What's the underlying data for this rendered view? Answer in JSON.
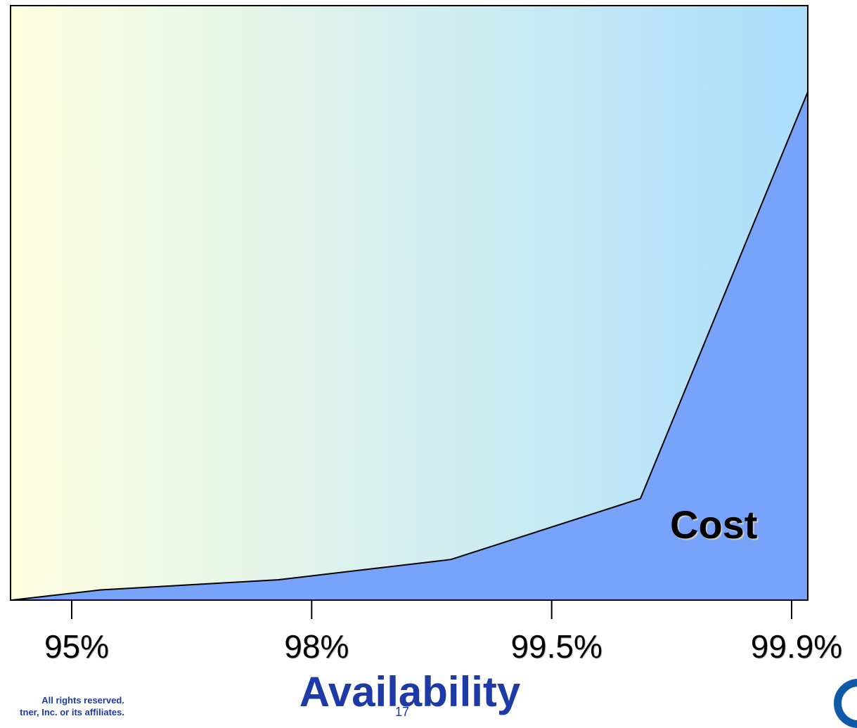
{
  "chart_data": {
    "type": "area",
    "categories": [
      "95%",
      "98%",
      "99.5%",
      "99.9%"
    ],
    "series": [
      {
        "name": "Cost",
        "values": [
          2,
          4,
          22,
          100
        ]
      }
    ],
    "profile": {
      "x": [
        -0.25,
        0.12,
        0.86,
        1.58,
        2.37,
        3.07
      ],
      "y": [
        0,
        2,
        4,
        8,
        20,
        100
      ]
    },
    "title": "",
    "xlabel": "Availability",
    "ylabel": "",
    "ylim": [
      0,
      117
    ],
    "grid": false,
    "legend": "none",
    "colors": {
      "area_fill": "#77a3fb",
      "bg_left": "#ffffe0",
      "bg_right": "#abdefd",
      "axis": "#000000",
      "xlabel": "#1d3aa6"
    }
  },
  "footer": {
    "line1": "All rights reserved.",
    "line2": "tner, Inc. or its affiliates."
  },
  "page_number": "17",
  "logo": {
    "icon": "gartner-g-logo"
  }
}
